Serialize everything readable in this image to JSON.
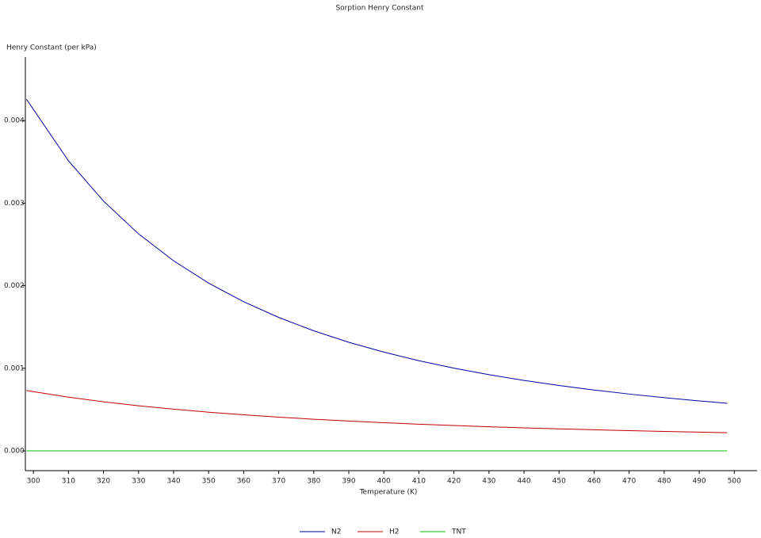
{
  "chart_data": {
    "type": "line",
    "title": "Sorption Henry Constant",
    "y_label": "Henry Constant (per kPa)",
    "x_label": "Temperature (K)",
    "x": [
      298,
      310,
      320,
      330,
      340,
      350,
      360,
      370,
      380,
      390,
      400,
      410,
      420,
      430,
      440,
      450,
      460,
      470,
      480,
      490,
      498
    ],
    "series": [
      {
        "name": "N2",
        "color": "#0000a0",
        "values": [
          0.00426,
          0.003513,
          0.003025,
          0.002628,
          0.002302,
          0.002032,
          0.001806,
          0.001616,
          0.001454,
          0.001315,
          0.001196,
          0.001092,
          0.001002,
          0.000923,
          0.000853,
          0.000792,
          0.000737,
          0.000688,
          0.000644,
          0.000605,
          0.000576
        ]
      },
      {
        "name": "H2",
        "color": "#c00000",
        "values": [
          0.00073,
          0.00065,
          0.000594,
          0.000546,
          0.000505,
          0.000468,
          0.000437,
          0.000408,
          0.000383,
          0.000361,
          0.000341,
          0.000323,
          0.000307,
          0.000292,
          0.000278,
          0.000266,
          0.000255,
          0.000245,
          0.000235,
          0.000227,
          0.00022
        ]
      },
      {
        "name": "TNT",
        "color": "#00c000",
        "values": [
          0,
          0,
          0,
          0,
          0,
          0,
          0,
          0,
          0,
          0,
          0,
          0,
          0,
          0,
          0,
          0,
          0,
          0,
          0,
          0,
          0
        ]
      }
    ],
    "xlim": [
      297.7,
      506.5
    ],
    "xticks": [
      300,
      310,
      320,
      330,
      340,
      350,
      360,
      370,
      380,
      390,
      400,
      410,
      420,
      430,
      440,
      450,
      460,
      470,
      480,
      490,
      500
    ],
    "ylim": [
      -0.00024,
      0.00477
    ],
    "yticks": [
      {
        "value": 0,
        "label": "0.000"
      },
      {
        "value": 0.001,
        "label": "0.001"
      },
      {
        "value": 0.002,
        "label": "0.002"
      },
      {
        "value": 0.003,
        "label": "0.003"
      },
      {
        "value": 0.004,
        "label": "0.004"
      }
    ],
    "legend": "bottom"
  }
}
